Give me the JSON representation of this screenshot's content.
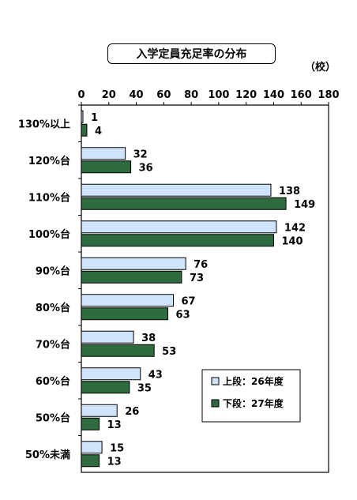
{
  "chart_data": {
    "type": "bar",
    "orientation": "horizontal",
    "title": "入学定員充足率の分布",
    "unit": "（校）",
    "categories": [
      "130%以上",
      "120%台",
      "110%台",
      "100%台",
      "90%台",
      "80%台",
      "70%台",
      "60%台",
      "50%台",
      "50%未満"
    ],
    "series": [
      {
        "name": "上段：26年度",
        "values": [
          1,
          32,
          138,
          142,
          76,
          67,
          38,
          43,
          26,
          15
        ],
        "color": "#cfe3fb"
      },
      {
        "name": "下段：27年度",
        "values": [
          4,
          36,
          149,
          140,
          73,
          63,
          53,
          35,
          13,
          13
        ],
        "color": "#2e6b3f"
      }
    ],
    "xlim": [
      0,
      180
    ],
    "xticks": [
      "0",
      "20",
      "40",
      "60",
      "80",
      "100",
      "120",
      "140",
      "160",
      "180"
    ],
    "grid": false,
    "legend_position": "lower-right"
  }
}
